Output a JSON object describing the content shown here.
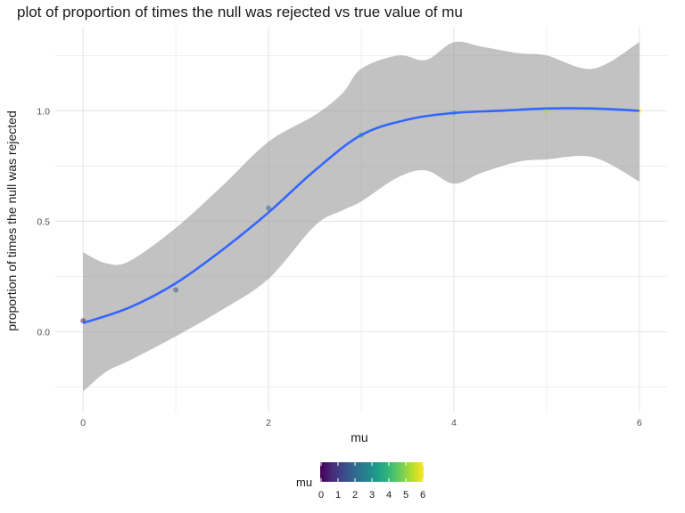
{
  "chart_data": {
    "type": "scatter",
    "title": "plot of proportion of times the null was rejected vs true value of mu",
    "xlabel": "mu",
    "ylabel": "proportion of times the null was rejected",
    "xlim": [
      -0.3,
      6.3
    ],
    "ylim": [
      -0.36,
      1.38
    ],
    "x_ticks": [
      0,
      2,
      4,
      6
    ],
    "y_ticks": [
      0.0,
      0.5,
      1.0
    ],
    "y_tick_labels": [
      "0.0",
      "0.5",
      "1.0"
    ],
    "grid": true,
    "legend_position": "bottom",
    "points": [
      {
        "x": 0,
        "y": 0.05
      },
      {
        "x": 1,
        "y": 0.19
      },
      {
        "x": 2,
        "y": 0.56
      },
      {
        "x": 3,
        "y": 0.89
      },
      {
        "x": 4,
        "y": 0.99
      },
      {
        "x": 5,
        "y": 1.0
      },
      {
        "x": 6,
        "y": 1.0
      }
    ],
    "smooth_line": {
      "x": [
        0,
        0.5,
        1,
        1.5,
        2,
        2.5,
        3,
        3.5,
        4,
        4.5,
        5,
        5.5,
        6
      ],
      "y": [
        0.04,
        0.11,
        0.22,
        0.37,
        0.54,
        0.73,
        0.89,
        0.96,
        0.99,
        1.0,
        1.01,
        1.01,
        1.0
      ]
    },
    "confidence_band": {
      "x": [
        0,
        0.25,
        0.5,
        1,
        1.5,
        2,
        2.5,
        2.8,
        3,
        3.4,
        3.7,
        4,
        4.3,
        4.7,
        5,
        5.5,
        6
      ],
      "upper": [
        0.36,
        0.31,
        0.32,
        0.47,
        0.66,
        0.86,
        0.98,
        1.08,
        1.19,
        1.25,
        1.23,
        1.31,
        1.29,
        1.26,
        1.25,
        1.19,
        1.31
      ],
      "lower": [
        -0.27,
        -0.18,
        -0.13,
        -0.02,
        0.1,
        0.24,
        0.48,
        0.55,
        0.59,
        0.7,
        0.73,
        0.67,
        0.72,
        0.77,
        0.78,
        0.79,
        0.68
      ]
    },
    "colors": {
      "line": "#3366ff",
      "band": "#999999",
      "grid": "#e5e5e5",
      "viridis": [
        "#440154",
        "#482878",
        "#3e4989",
        "#31688e",
        "#26828e",
        "#1f9e89",
        "#35b779",
        "#6ece58",
        "#b5de2b",
        "#fde725"
      ]
    },
    "legend": {
      "title": "mu",
      "range": [
        0,
        6
      ],
      "ticks": [
        0,
        1,
        2,
        3,
        4,
        5,
        6
      ]
    }
  }
}
